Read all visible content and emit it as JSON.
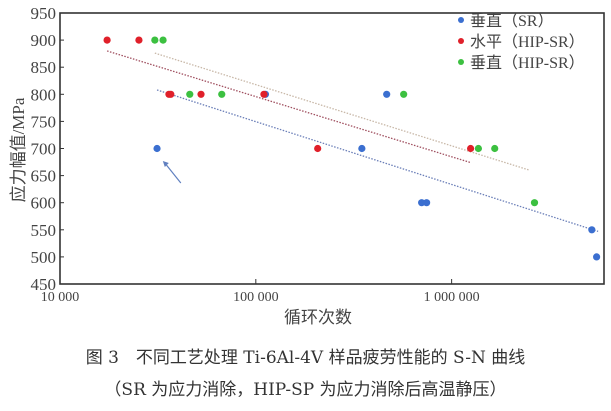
{
  "chart_data": {
    "type": "scatter",
    "xlabel": "循环次数",
    "ylabel": "应力幅值/MPa",
    "xscale": "log",
    "xlim": [
      10000,
      6000000
    ],
    "ylim": [
      450,
      950
    ],
    "xticks": [
      10000,
      100000,
      1000000
    ],
    "xtick_labels": [
      "10 000",
      "100 000",
      "1 000 000"
    ],
    "yticks": [
      450,
      500,
      550,
      600,
      650,
      700,
      750,
      800,
      850,
      900,
      950
    ],
    "grid": false,
    "legend_position": "top-right",
    "series": [
      {
        "name": "垂直（SR）",
        "color": "#3b6fd0",
        "x": [
          31300,
          112000,
          348000,
          466000,
          703000,
          745000,
          5200000,
          5500000
        ],
        "y": [
          700,
          800,
          700,
          800,
          600,
          600,
          550,
          500
        ],
        "trend": {
          "x": [
            31300,
            5600000
          ],
          "y": [
            808,
            547
          ],
          "color": "#6b7fb8"
        }
      },
      {
        "name": "水平（HIP-SR）",
        "color": "#e0202a",
        "x": [
          17400,
          25300,
          36000,
          36800,
          52500,
          110000,
          207000,
          1250000
        ],
        "y": [
          900,
          900,
          800,
          800,
          800,
          800,
          700,
          700
        ],
        "trend": {
          "x": [
            17400,
            1250000
          ],
          "y": [
            880,
            674
          ],
          "color": "#a05060"
        }
      },
      {
        "name": "垂直（HIP-SR）",
        "color": "#3cc040",
        "x": [
          30500,
          33600,
          46000,
          67000,
          569000,
          1370000,
          1660000,
          2650000
        ],
        "y": [
          900,
          900,
          800,
          800,
          800,
          700,
          700,
          600
        ],
        "trend": {
          "x": [
            30500,
            2500000
          ],
          "y": [
            876,
            660
          ],
          "color": "#c8b8a8"
        }
      }
    ],
    "annotations": [
      {
        "type": "arrow",
        "color": "#6080c0",
        "x": 33500,
        "y": 677
      }
    ]
  },
  "caption": {
    "line1": "图 3　不同工艺处理 Ti-6Al-4V 样品疲劳性能的 S-N 曲线",
    "line2": "（SR 为应力消除，HIP-SP 为应力消除后高温静压）"
  }
}
